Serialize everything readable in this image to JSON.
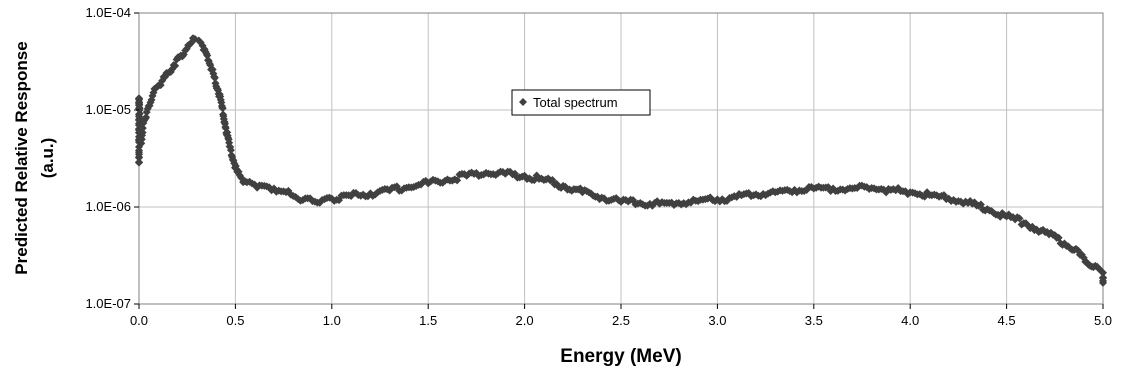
{
  "chart_data": {
    "type": "scatter",
    "title": "",
    "xlabel": "Energy (MeV)",
    "ylabel_lines": [
      "Predicted Relative Response",
      "(a.u.)"
    ],
    "xlim": [
      0,
      5
    ],
    "ylim": [
      1e-07,
      0.0001
    ],
    "yscale": "log",
    "grid": true,
    "legend_placement": "upper-center",
    "x_ticks": [
      "0.0",
      "0.5",
      "1.0",
      "1.5",
      "2.0",
      "2.5",
      "3.0",
      "3.5",
      "4.0",
      "4.5",
      "5.0"
    ],
    "y_ticks": [
      "1.0E-07",
      "1.0E-06",
      "1.0E-05",
      "1.0E-04"
    ],
    "marker_color": "#404040",
    "series": [
      {
        "name": "Total spectrum",
        "marker": "diamond",
        "points": [
          [
            0.0,
            2.9e-06
          ],
          [
            0.0,
            1.3e-05
          ],
          [
            0.01,
            4.5e-06
          ],
          [
            0.02,
            6.5e-06
          ],
          [
            0.03,
            8e-06
          ],
          [
            0.04,
            9.5e-06
          ],
          [
            0.05,
            1.1e-05
          ],
          [
            0.07,
            1.4e-05
          ],
          [
            0.09,
            1.7e-05
          ],
          [
            0.12,
            2e-05
          ],
          [
            0.15,
            2.4e-05
          ],
          [
            0.18,
            2.9e-05
          ],
          [
            0.21,
            3.5e-05
          ],
          [
            0.24,
            4.1e-05
          ],
          [
            0.27,
            4.9e-05
          ],
          [
            0.29,
            5.4e-05
          ],
          [
            0.31,
            5.2e-05
          ],
          [
            0.33,
            4.6e-05
          ],
          [
            0.35,
            3.8e-05
          ],
          [
            0.37,
            2.9e-05
          ],
          [
            0.39,
            2.2e-05
          ],
          [
            0.41,
            1.6e-05
          ],
          [
            0.43,
            1.1e-05
          ],
          [
            0.45,
            6.5e-06
          ],
          [
            0.47,
            4.2e-06
          ],
          [
            0.49,
            3e-06
          ],
          [
            0.51,
            2.3e-06
          ],
          [
            0.53,
            2e-06
          ],
          [
            0.56,
            1.8e-06
          ],
          [
            0.6,
            1.7e-06
          ],
          [
            0.65,
            1.65e-06
          ],
          [
            0.7,
            1.55e-06
          ],
          [
            0.75,
            1.45e-06
          ],
          [
            0.8,
            1.3e-06
          ],
          [
            0.85,
            1.18e-06
          ],
          [
            0.9,
            1.15e-06
          ],
          [
            0.95,
            1.18e-06
          ],
          [
            1.0,
            1.22e-06
          ],
          [
            1.1,
            1.3e-06
          ],
          [
            1.2,
            1.38e-06
          ],
          [
            1.3,
            1.48e-06
          ],
          [
            1.4,
            1.6e-06
          ],
          [
            1.5,
            1.75e-06
          ],
          [
            1.6,
            1.92e-06
          ],
          [
            1.7,
            2.1e-06
          ],
          [
            1.8,
            2.25e-06
          ],
          [
            1.9,
            2.2e-06
          ],
          [
            2.0,
            2.1e-06
          ],
          [
            2.1,
            1.9e-06
          ],
          [
            2.2,
            1.65e-06
          ],
          [
            2.3,
            1.42e-06
          ],
          [
            2.4,
            1.25e-06
          ],
          [
            2.5,
            1.13e-06
          ],
          [
            2.6,
            1.1e-06
          ],
          [
            2.7,
            1.08e-06
          ],
          [
            2.8,
            1.1e-06
          ],
          [
            2.9,
            1.15e-06
          ],
          [
            3.0,
            1.2e-06
          ],
          [
            3.1,
            1.27e-06
          ],
          [
            3.2,
            1.35e-06
          ],
          [
            3.3,
            1.42e-06
          ],
          [
            3.4,
            1.5e-06
          ],
          [
            3.5,
            1.55e-06
          ],
          [
            3.6,
            1.55e-06
          ],
          [
            3.7,
            1.55e-06
          ],
          [
            3.8,
            1.57e-06
          ],
          [
            3.9,
            1.5e-06
          ],
          [
            4.0,
            1.42e-06
          ],
          [
            4.1,
            1.33e-06
          ],
          [
            4.2,
            1.22e-06
          ],
          [
            4.3,
            1.1e-06
          ],
          [
            4.4,
            9.5e-07
          ],
          [
            4.5,
            8e-07
          ],
          [
            4.6,
            6.8e-07
          ],
          [
            4.7,
            5.5e-07
          ],
          [
            4.8,
            4.2e-07
          ],
          [
            4.85,
            3.6e-07
          ],
          [
            4.9,
            3e-07
          ],
          [
            4.95,
            2.4e-07
          ],
          [
            5.0,
            2.1e-07
          ],
          [
            5.0,
            1.65e-07
          ]
        ]
      }
    ]
  }
}
